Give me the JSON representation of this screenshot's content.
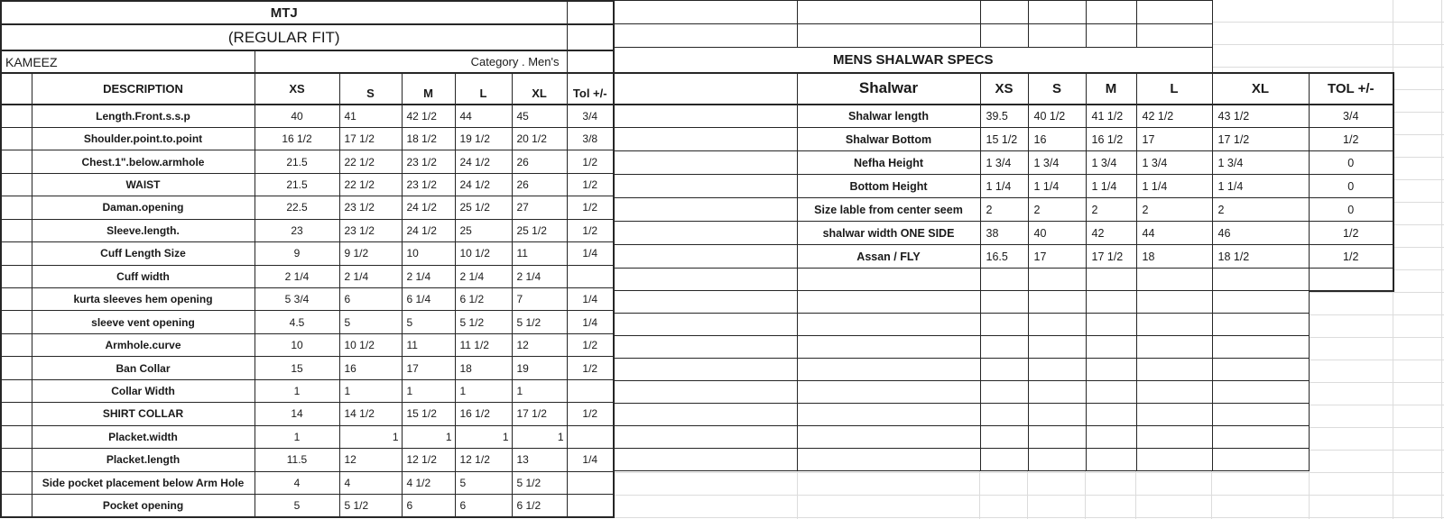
{
  "kameez": {
    "title": "MTJ",
    "fit": "(REGULAR FIT)",
    "garment": "KAMEEZ",
    "category": "Category .  Men's",
    "columns": [
      "DESCRIPTION",
      "XS",
      "S",
      "M",
      "L",
      "XL",
      "Tol +/-"
    ],
    "rows": [
      {
        "label": "Length.Front.s.s.p",
        "values": [
          "40",
          "41",
          "42 1/2",
          "44",
          "45"
        ],
        "tol": "3/4"
      },
      {
        "label": "Shoulder.point.to.point",
        "values": [
          "16 1/2",
          "17 1/2",
          "18 1/2",
          "19 1/2",
          "20 1/2"
        ],
        "tol": "3/8"
      },
      {
        "label": "Chest.1\".below.armhole",
        "values": [
          "21.5",
          "22 1/2",
          "23 1/2",
          "24 1/2",
          "26"
        ],
        "tol": "1/2"
      },
      {
        "label": "WAIST",
        "values": [
          "21.5",
          "22 1/2",
          "23 1/2",
          "24 1/2",
          "26"
        ],
        "tol": "1/2"
      },
      {
        "label": "Daman.opening",
        "values": [
          "22.5",
          "23 1/2",
          "24 1/2",
          "25 1/2",
          "27"
        ],
        "tol": "1/2"
      },
      {
        "label": "Sleeve.length.",
        "values": [
          "23",
          "23 1/2",
          "24 1/2",
          "25",
          "25 1/2"
        ],
        "tol": "1/2"
      },
      {
        "label": "Cuff Length Size",
        "values": [
          "9",
          "9 1/2",
          "10",
          "10 1/2",
          "11"
        ],
        "tol": "1/4"
      },
      {
        "label": "Cuff width",
        "values": [
          "2 1/4",
          "2 1/4",
          "2 1/4",
          "2 1/4",
          "2 1/4"
        ],
        "tol": ""
      },
      {
        "label": "kurta sleeves hem opening",
        "values": [
          "5 3/4",
          "6",
          "6 1/4",
          "6 1/2",
          "7"
        ],
        "tol": "1/4"
      },
      {
        "label": "sleeve vent opening",
        "values": [
          "4.5",
          "5",
          "5",
          "5 1/2",
          "5 1/2"
        ],
        "tol": "1/4"
      },
      {
        "label": "Armhole.curve",
        "values": [
          "10",
          "10 1/2",
          "11",
          "11 1/2",
          "12"
        ],
        "tol": "1/2"
      },
      {
        "label": "Ban Collar",
        "values": [
          "15",
          "16",
          "17",
          "18",
          "19"
        ],
        "tol": "1/2"
      },
      {
        "label": "Collar Width",
        "values": [
          "1",
          "1",
          "1",
          "1",
          "1"
        ],
        "tol": ""
      },
      {
        "label": "SHIRT COLLAR",
        "values": [
          "14",
          "14 1/2",
          "15 1/2",
          "16 1/2",
          "17 1/2"
        ],
        "tol": "1/2"
      },
      {
        "label": "Placket.width",
        "values": [
          "1",
          "1",
          "1",
          "1",
          "1"
        ],
        "tol": ""
      },
      {
        "label": "Placket.length",
        "values": [
          "11.5",
          "12",
          "12 1/2",
          "12 1/2",
          "13"
        ],
        "tol": "1/4"
      },
      {
        "label": "Side pocket placement below Arm Hole",
        "values": [
          "4",
          "4",
          "4 1/2",
          "5",
          "5 1/2"
        ],
        "tol": ""
      },
      {
        "label": "Pocket opening",
        "values": [
          "5",
          "5 1/2",
          "6",
          "6",
          "6 1/2"
        ],
        "tol": ""
      }
    ]
  },
  "shalwar": {
    "title": "MENS SHALWAR SPECS",
    "columns": [
      "Shalwar",
      "XS",
      "S",
      "M",
      "L",
      "XL",
      "TOL +/-"
    ],
    "rows": [
      {
        "label": "Shalwar length",
        "values": [
          "39.5",
          "40 1/2",
          "41 1/2",
          "42 1/2",
          "43 1/2"
        ],
        "tol": "3/4"
      },
      {
        "label": "Shalwar Bottom",
        "values": [
          "15 1/2",
          "16",
          "16 1/2",
          "17",
          "17 1/2"
        ],
        "tol": "1/2"
      },
      {
        "label": "Nefha Height",
        "values": [
          "1 3/4",
          "1 3/4",
          "1 3/4",
          "1 3/4",
          "1 3/4"
        ],
        "tol": "0"
      },
      {
        "label": "Bottom Height",
        "values": [
          "1 1/4",
          "1 1/4",
          "1 1/4",
          "1 1/4",
          "1 1/4"
        ],
        "tol": "0"
      },
      {
        "label": "Size lable from center seem",
        "values": [
          "2",
          "2",
          "2",
          "2",
          "2"
        ],
        "tol": "0"
      },
      {
        "label": "shalwar width ONE SIDE",
        "values": [
          "38",
          "40",
          "42",
          "44",
          "46"
        ],
        "tol": "1/2"
      },
      {
        "label": "Assan / FLY",
        "values": [
          "16.5",
          "17",
          "17 1/2",
          "18",
          "18 1/2"
        ],
        "tol": "1/2"
      }
    ]
  }
}
